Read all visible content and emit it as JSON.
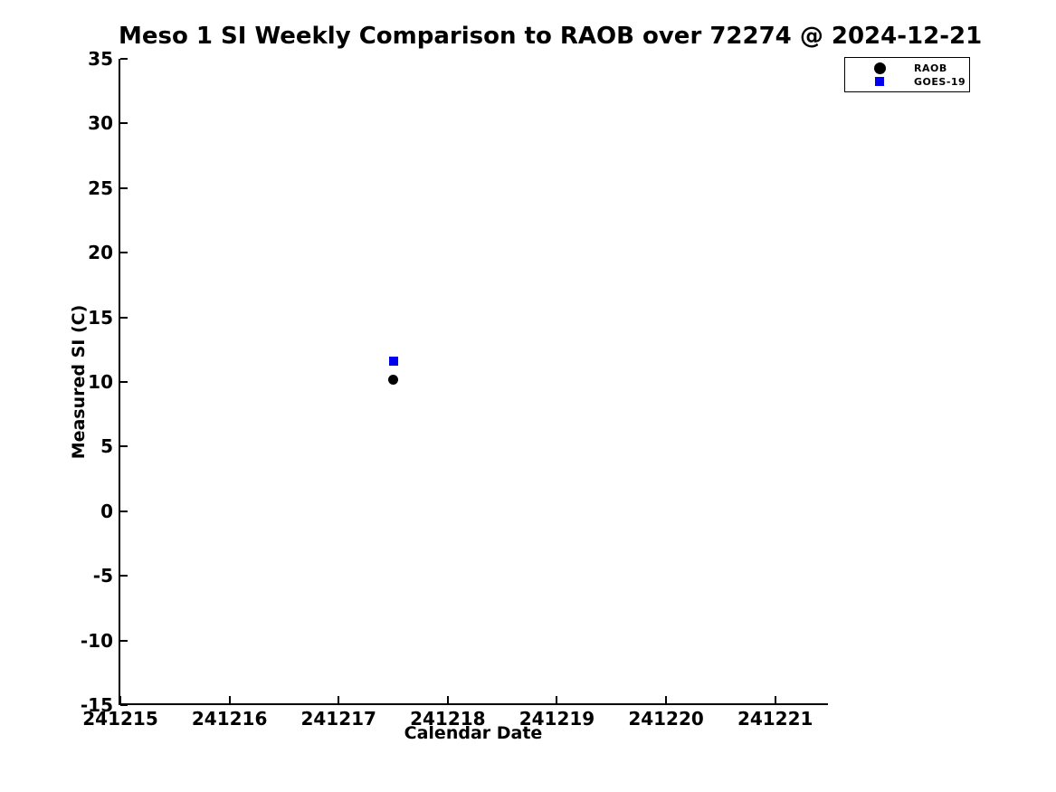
{
  "chart_data": {
    "type": "scatter",
    "title": "Meso 1 SI Weekly Comparison to RAOB over 72274 @ 2024-12-21",
    "xlabel": "Calendar Date",
    "ylabel": "Measured SI (C)",
    "xlim": [
      241215,
      241221.5
    ],
    "ylim": [
      -15,
      35
    ],
    "x_ticks": [
      241215,
      241216,
      241217,
      241218,
      241219,
      241220,
      241221
    ],
    "y_ticks": [
      35,
      30,
      25,
      20,
      15,
      10,
      5,
      0,
      -5,
      -10,
      -15
    ],
    "grid": false,
    "legend_position": "top-right-outside",
    "axis_color": "#000000",
    "background_color": "#ffffff",
    "series": [
      {
        "name": "RAOB",
        "marker": "circle",
        "color": "#000000",
        "marker_size": 11,
        "points": [
          {
            "x": 241217.5,
            "y": 10.2
          }
        ]
      },
      {
        "name": "GOES-19",
        "marker": "square",
        "color": "#0000ee",
        "marker_size": 10,
        "points": [
          {
            "x": 241217.5,
            "y": 11.6
          }
        ]
      }
    ]
  }
}
